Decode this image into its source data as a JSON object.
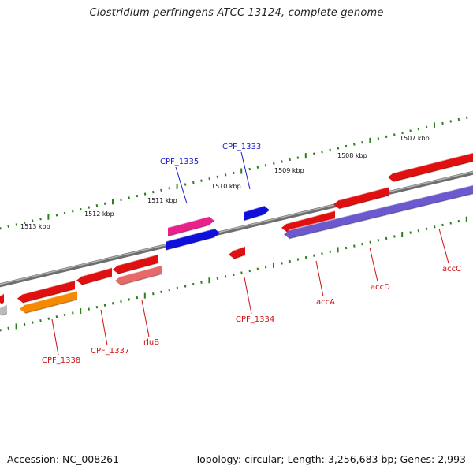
{
  "title": "Clostridium perfringens ATCC 13124, complete genome",
  "footer": {
    "accession": "Accession: NC_008261",
    "topology": "Topology: circular; Length: 3,256,683 bp; Genes: 2,993"
  },
  "colors": {
    "backbone": "#7a7a7a",
    "tick": "#2e7d1e",
    "label_forward": "#1a1acc",
    "label_reverse": "#cc1111",
    "gene_red": "#e01010",
    "gene_blue": "#1010dd",
    "gene_magenta": "#e8208a",
    "gene_orange": "#f58a00",
    "gene_salmon": "#e66a6a",
    "gene_purple": "#6a5acd",
    "gene_gray": "#bbbbbb"
  },
  "ruler_labels": [
    "1513 kbp",
    "1512 kbp",
    "1511 kbp",
    "1510 kbp",
    "1509 kbp",
    "1508 kbp",
    "1507 kbp"
  ],
  "gene_labels": {
    "forward": [
      "CPF_1335",
      "CPF_1333"
    ],
    "reverse": [
      "CPF_1338",
      "CPF_1337",
      "rluB",
      "CPF_1334",
      "accA",
      "accD",
      "accC"
    ]
  }
}
